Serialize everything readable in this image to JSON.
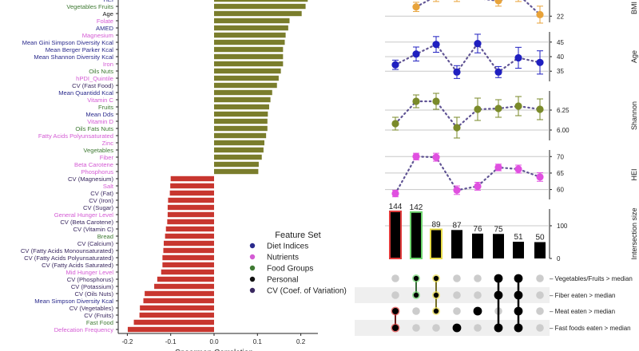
{
  "colors": {
    "positive_bar": "#7a7d2c",
    "negative_bar": "#c8362f",
    "diet_indices": "#2a2a8c",
    "nutrients": "#d45bd4",
    "food_groups": "#3f7a33",
    "personal": "#111111",
    "cv": "#3a2860",
    "bmi": "#e8a33a",
    "age": "#1f1fc0",
    "shannon": "#7a8a2a",
    "hei": "#e050e0"
  },
  "chart_data": [
    {
      "type": "bar",
      "orientation": "horizontal",
      "xlabel": "Spearman Correlation",
      "xlim": [
        -0.22,
        0.24
      ],
      "xticks": [
        "-0.2",
        "-0.1",
        "0.0",
        "0.1",
        "0.2"
      ],
      "xtick_values": [
        -0.2,
        -0.1,
        0,
        0.1,
        0.2
      ],
      "features": [
        {
          "label": "HEI",
          "value": 0.216,
          "set": "diet_indices"
        },
        {
          "label": "Vegetables Fruits",
          "value": 0.211,
          "set": "food_groups"
        },
        {
          "label": "Age",
          "value": 0.202,
          "set": "personal"
        },
        {
          "label": "Folate",
          "value": 0.174,
          "set": "nutrients"
        },
        {
          "label": "AMED",
          "value": 0.171,
          "set": "diet_indices"
        },
        {
          "label": "Magnesium",
          "value": 0.165,
          "set": "nutrients"
        },
        {
          "label": "Mean Gini Simpson Diversity Kcal",
          "value": 0.163,
          "set": "diet_indices"
        },
        {
          "label": "Mean Berger Parker Kcal",
          "value": 0.159,
          "set": "diet_indices"
        },
        {
          "label": "Mean Shannon Diversity Kcal",
          "value": 0.159,
          "set": "diet_indices"
        },
        {
          "label": "Iron",
          "value": 0.159,
          "set": "nutrients"
        },
        {
          "label": "Oils Nuts",
          "value": 0.154,
          "set": "food_groups"
        },
        {
          "label": "hPDI_Quintile",
          "value": 0.149,
          "set": "nutrients"
        },
        {
          "label": "CV (Fast Food)",
          "value": 0.145,
          "set": "cv"
        },
        {
          "label": "Mean Quantidd Kcal",
          "value": 0.134,
          "set": "diet_indices"
        },
        {
          "label": "Vitamin C",
          "value": 0.13,
          "set": "nutrients"
        },
        {
          "label": "Fruits",
          "value": 0.127,
          "set": "food_groups"
        },
        {
          "label": "Mean Dds",
          "value": 0.124,
          "set": "diet_indices"
        },
        {
          "label": "Vitamin D",
          "value": 0.123,
          "set": "nutrients"
        },
        {
          "label": "Oils Fats Nuts",
          "value": 0.123,
          "set": "food_groups"
        },
        {
          "label": "Fatty Acids Polyunsaturated",
          "value": 0.12,
          "set": "nutrients"
        },
        {
          "label": "Zinc",
          "value": 0.116,
          "set": "nutrients"
        },
        {
          "label": "Vegetables",
          "value": 0.114,
          "set": "food_groups"
        },
        {
          "label": "Fiber",
          "value": 0.11,
          "set": "nutrients"
        },
        {
          "label": "Beta Carotene",
          "value": 0.103,
          "set": "nutrients"
        },
        {
          "label": "Phosphorus",
          "value": 0.102,
          "set": "nutrients"
        },
        {
          "label": "CV (Magnesium)",
          "value": -0.1,
          "set": "cv"
        },
        {
          "label": "Salt",
          "value": -0.101,
          "set": "nutrients"
        },
        {
          "label": "CV (Fat)",
          "value": -0.102,
          "set": "cv"
        },
        {
          "label": "CV (Iron)",
          "value": -0.106,
          "set": "cv"
        },
        {
          "label": "CV (Sugar)",
          "value": -0.107,
          "set": "cv"
        },
        {
          "label": "General Hunger Level",
          "value": -0.107,
          "set": "nutrients"
        },
        {
          "label": "CV (Beta Carotene)",
          "value": -0.108,
          "set": "cv"
        },
        {
          "label": "CV (Vitamin C)",
          "value": -0.111,
          "set": "cv"
        },
        {
          "label": "Bread",
          "value": -0.113,
          "set": "food_groups"
        },
        {
          "label": "CV (Calcium)",
          "value": -0.116,
          "set": "cv"
        },
        {
          "label": "CV (Fatty Acids Monounsaturated)",
          "value": -0.117,
          "set": "cv"
        },
        {
          "label": "CV (Fatty Acids Polyunsaturated)",
          "value": -0.119,
          "set": "cv"
        },
        {
          "label": "CV (Fatty Acids Saturated)",
          "value": -0.119,
          "set": "cv"
        },
        {
          "label": "Mid Hunger Level",
          "value": -0.122,
          "set": "nutrients"
        },
        {
          "label": "CV (Phosphorus)",
          "value": -0.131,
          "set": "cv"
        },
        {
          "label": "CV (Potassium)",
          "value": -0.138,
          "set": "cv"
        },
        {
          "label": "CV (Oils Nuts)",
          "value": -0.16,
          "set": "cv"
        },
        {
          "label": "Mean Simpson Diversity Kcal",
          "value": -0.163,
          "set": "diet_indices"
        },
        {
          "label": "CV (Vegetables)",
          "value": -0.171,
          "set": "cv"
        },
        {
          "label": "CV (Fruits)",
          "value": -0.172,
          "set": "cv"
        },
        {
          "label": "Fast Food",
          "value": -0.185,
          "set": "food_groups"
        },
        {
          "label": "Defecation Frequency",
          "value": -0.199,
          "set": "nutrients"
        }
      ],
      "legend": {
        "title": "Feature Set",
        "placement": "lower-right",
        "entries": [
          {
            "label": "Diet Indices",
            "key": "diet_indices"
          },
          {
            "label": "Nutrients",
            "key": "nutrients"
          },
          {
            "label": "Food Groups",
            "key": "food_groups"
          },
          {
            "label": "Personal",
            "key": "personal"
          },
          {
            "label": "CV (Coef. of Variation)",
            "key": "cv"
          }
        ]
      }
    },
    {
      "type": "upset",
      "panels": [
        {
          "ylabel": "BMI",
          "color_key": "bmi",
          "yticks": [
            22
          ],
          "ylim": [
            21.6,
            24.6
          ],
          "means": [
            null,
            22.6,
            23.3,
            23.3,
            null,
            23.0,
            23.4,
            22.1
          ],
          "errors": [
            null,
            0.3,
            0.35,
            0.35,
            null,
            0.35,
            0.45,
            0.55
          ]
        },
        {
          "ylabel": "Age",
          "color_key": "age",
          "yticks": [
            35,
            40,
            45
          ],
          "ylim": [
            31.5,
            48.5
          ],
          "means": [
            37.2,
            40.9,
            44.2,
            34.7,
            44.5,
            34.7,
            39.6,
            38.0
          ],
          "errors": [
            1.6,
            2.4,
            2.7,
            2.2,
            3.2,
            1.9,
            3.6,
            4.0
          ]
        },
        {
          "ylabel": "Shannon",
          "color_key": "shannon",
          "yticks": [
            6.0,
            6.25
          ],
          "ylim": [
            5.87,
            6.49
          ],
          "means": [
            6.08,
            6.36,
            6.36,
            6.03,
            6.26,
            6.27,
            6.3,
            6.26
          ],
          "errors": [
            0.08,
            0.08,
            0.1,
            0.13,
            0.14,
            0.11,
            0.12,
            0.13
          ]
        },
        {
          "ylabel": "HEI",
          "color_key": "hei",
          "yticks": [
            60,
            65,
            70
          ],
          "ylim": [
            57,
            72
          ],
          "means": [
            58.8,
            70.0,
            69.8,
            59.8,
            61.0,
            66.7,
            66.2,
            63.8
          ],
          "errors": [
            1.0,
            1.0,
            1.2,
            1.3,
            1.2,
            1.0,
            1.2,
            1.3
          ]
        }
      ],
      "intersection": {
        "ylabel": "Intersection size",
        "yticks": [
          0,
          100
        ],
        "ylim": [
          0,
          150
        ],
        "values": [
          144,
          142,
          89,
          87,
          76,
          75,
          51,
          50
        ],
        "highlight": [
          "#e03a3a",
          "#6fd66f",
          "#e8dc4a",
          null,
          null,
          null,
          null,
          null
        ]
      },
      "sets": [
        {
          "label": "Vegetables/Fruits > median"
        },
        {
          "label": "Fiber eaten > median"
        },
        {
          "label": "Meat eaten > median"
        },
        {
          "label": "Fast foods eaten > median"
        }
      ],
      "membership": [
        [
          0,
          0,
          1,
          1
        ],
        [
          1,
          1,
          0,
          0
        ],
        [
          1,
          1,
          1,
          0
        ],
        [
          0,
          0,
          0,
          1
        ],
        [
          0,
          0,
          1,
          0
        ],
        [
          1,
          1,
          0,
          1
        ],
        [
          1,
          1,
          1,
          1
        ],
        [
          0,
          0,
          0,
          0
        ]
      ]
    }
  ]
}
